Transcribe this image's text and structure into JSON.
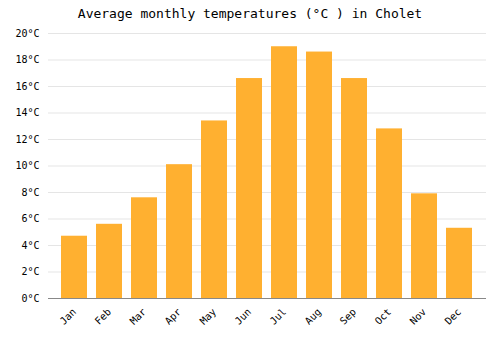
{
  "chart_data": {
    "type": "bar",
    "title": "Average monthly temperatures (°C ) in Cholet",
    "categories": [
      "Jan",
      "Feb",
      "Mar",
      "Apr",
      "May",
      "Jun",
      "Jul",
      "Aug",
      "Sep",
      "Oct",
      "Nov",
      "Dec"
    ],
    "values": [
      4.7,
      5.6,
      7.6,
      10.1,
      13.4,
      16.6,
      19.0,
      18.6,
      16.6,
      12.8,
      7.9,
      5.3
    ],
    "color": "#FFB030",
    "ylim": [
      0,
      20
    ],
    "yticks": [
      {
        "value": 0,
        "label": "0°C"
      },
      {
        "value": 2,
        "label": "2°C"
      },
      {
        "value": 4,
        "label": "4°C"
      },
      {
        "value": 6,
        "label": "6°C"
      },
      {
        "value": 8,
        "label": "8°C"
      },
      {
        "value": 10,
        "label": "10°C"
      },
      {
        "value": 12,
        "label": "12°C"
      },
      {
        "value": 14,
        "label": "14°C"
      },
      {
        "value": 16,
        "label": "16°C"
      },
      {
        "value": 18,
        "label": "18°C"
      },
      {
        "value": 20,
        "label": "20°C"
      }
    ],
    "grid": true
  }
}
